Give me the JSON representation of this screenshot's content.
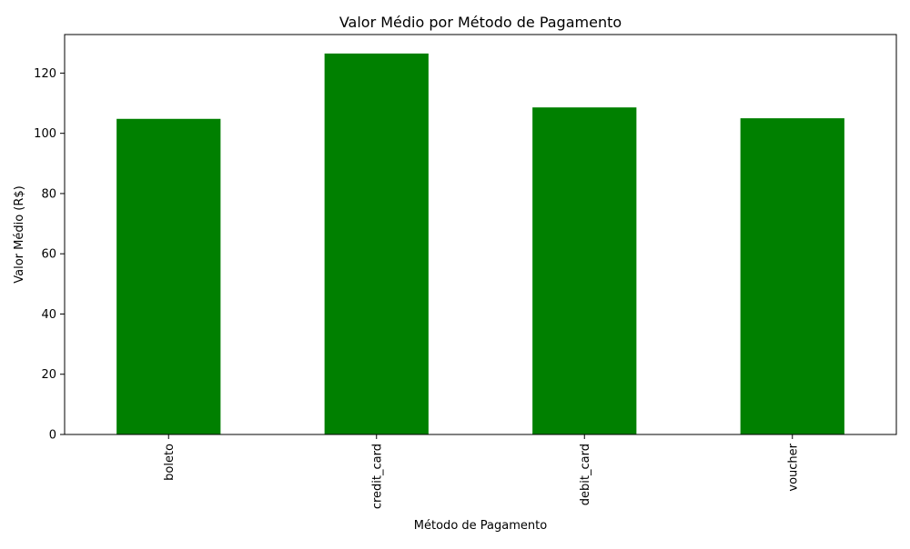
{
  "chart_data": {
    "type": "bar",
    "title": "Valor Médio por Método de Pagamento",
    "xlabel": "Método de Pagamento",
    "ylabel": "Valor Médio (R$)",
    "categories": [
      "boleto",
      "credit_card",
      "debit_card",
      "voucher"
    ],
    "values": [
      104.8,
      126.5,
      108.6,
      105.0
    ],
    "ylim": [
      0,
      132.8
    ],
    "yticks": [
      0,
      20,
      40,
      60,
      80,
      100,
      120
    ],
    "bar_color": "#008000",
    "grid": false,
    "legend": "none",
    "xtick_rotation": "vertical"
  }
}
